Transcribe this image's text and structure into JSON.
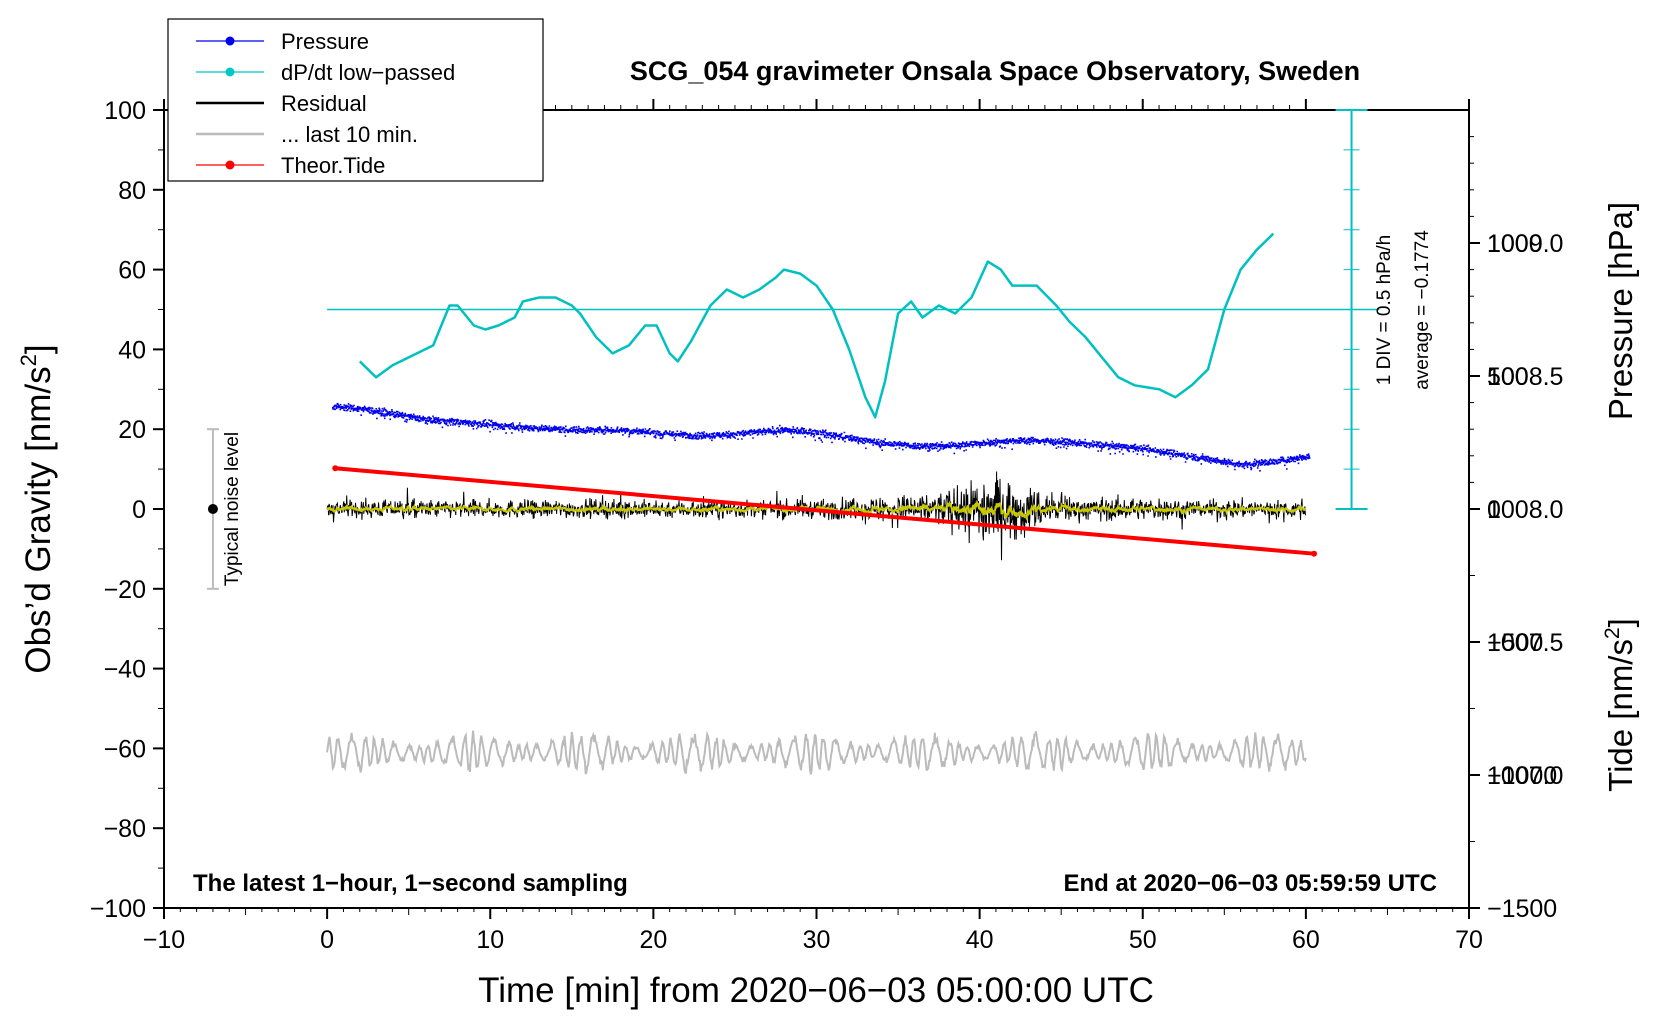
{
  "chart_data": {
    "type": "line",
    "title": "SCG_054 gravimeter Onsala Space Observatory, Sweden",
    "xlabel": "Time [min] from 2020−06−03 05:00:00 UTC",
    "ylabel_left_main": "Obs’d Gravity [nm/s",
    "ylabel_left_sup": "2",
    "ylabel_left_end": "]",
    "ylabel_right_pressure": "Pressure [hPa]",
    "ylabel_right_tide_main": "Tide [nm/s",
    "ylabel_right_tide_sup": "2",
    "ylabel_right_tide_end": "]",
    "xlim": [
      -10,
      70
    ],
    "ylim": [
      -100,
      100
    ],
    "pressure_lim": [
      1006.5,
      1009.5
    ],
    "tide_lim": [
      -1500,
      1500
    ],
    "x_ticks": [
      -10,
      0,
      10,
      20,
      30,
      40,
      50,
      60,
      70
    ],
    "x_tick_labels": [
      "−10",
      "0",
      "10",
      "20",
      "30",
      "40",
      "50",
      "60",
      "70"
    ],
    "y_ticks": [
      -100,
      -80,
      -60,
      -40,
      -20,
      0,
      20,
      40,
      60,
      80,
      100
    ],
    "y_tick_labels": [
      "−100",
      "−80",
      "−60",
      "−40",
      "−20",
      "0",
      "20",
      "40",
      "60",
      "80",
      "100"
    ],
    "pressure_ticks": [
      1007.0,
      1007.5,
      1008.0,
      1008.5,
      1009.0
    ],
    "pressure_tick_labels": [
      "1007.0",
      "1007.5",
      "1008.0",
      "1008.5",
      "1009.0"
    ],
    "tide_ticks": [
      -1500,
      -1000,
      -500,
      0,
      500,
      1000
    ],
    "tide_tick_labels": [
      "−1500",
      "−1000",
      "−500",
      "0",
      "500",
      "1000"
    ],
    "legend": [
      {
        "label": "Pressure",
        "color": "#0000ee",
        "marker": true
      },
      {
        "label": "dP/dt low−passed",
        "color": "#00c8c8",
        "marker": true
      },
      {
        "label": "Residual",
        "color": "#000000",
        "marker": false
      },
      {
        "label": "... last 10 min.",
        "color": "#bbbbbb",
        "marker": false
      },
      {
        "label": "Theor.Tide",
        "color": "#ff0000",
        "marker": true
      }
    ],
    "noise_label": "Typical noise level",
    "noise_bar": {
      "x": -7,
      "center": 0,
      "half_range": 20
    },
    "div_label_1": "1 DIV = 0.5 hPa/h",
    "div_label_2": "average = −0.1774",
    "dpdt_reference_level": 50,
    "dpdt_axis_x": 62.8,
    "annotation_left": "The latest 1−hour, 1−second sampling",
    "annotation_right": "End at 2020−06−03 05:59:59 UTC",
    "series": [
      {
        "name": "Pressure (hPa)",
        "color": "#0000ee",
        "x": [
          0,
          2,
          4,
          6,
          8,
          10,
          12,
          15,
          18,
          20,
          22,
          24,
          26,
          28,
          30,
          32,
          34,
          36,
          38,
          40,
          42,
          44,
          46,
          48,
          50,
          52,
          54,
          56,
          58,
          60
        ],
        "values": [
          1008.39,
          1008.38,
          1008.36,
          1008.34,
          1008.33,
          1008.32,
          1008.31,
          1008.3,
          1008.3,
          1008.29,
          1008.28,
          1008.28,
          1008.29,
          1008.3,
          1008.29,
          1008.27,
          1008.25,
          1008.24,
          1008.24,
          1008.25,
          1008.26,
          1008.26,
          1008.25,
          1008.24,
          1008.23,
          1008.21,
          1008.19,
          1008.17,
          1008.18,
          1008.2
        ]
      },
      {
        "name": "dP/dt low-passed",
        "color": "#00c0c0",
        "x": [
          2,
          3,
          4,
          5,
          6.5,
          7.5,
          8,
          9,
          9.7,
          10.5,
          11.5,
          12,
          13,
          14,
          15,
          15.5,
          16.5,
          17.5,
          18.5,
          19.5,
          20.2,
          21,
          21.5,
          22.3,
          23.5,
          24.5,
          25.5,
          26.5,
          27.5,
          28,
          29,
          30,
          31,
          32,
          33,
          33.6,
          34.2,
          35,
          35.8,
          36.5,
          37.5,
          38.5,
          39.5,
          40.5,
          41.3,
          42,
          43.5,
          44.7,
          45.5,
          46.5,
          47.5,
          48.5,
          49.5,
          51,
          52,
          53,
          54,
          55,
          56,
          57,
          58
        ],
        "values": [
          37,
          33,
          36,
          38,
          41,
          51,
          51,
          46,
          45,
          46,
          48,
          52,
          53,
          53,
          51,
          49,
          43,
          39,
          41,
          46,
          46,
          39,
          37,
          42,
          51,
          55,
          53,
          55,
          58,
          60,
          59,
          56,
          50,
          40,
          28,
          23,
          32,
          49,
          52,
          48,
          51,
          49,
          53,
          62,
          60,
          56,
          56,
          51,
          47,
          43,
          38,
          33,
          31,
          30,
          28,
          31,
          35,
          50,
          60,
          65,
          69
        ]
      },
      {
        "name": "Residual",
        "color": "#000000",
        "x": [
          0,
          60
        ],
        "envelope": [
          {
            "x": 0,
            "amp": 4
          },
          {
            "x": 30,
            "amp": 4
          },
          {
            "x": 35,
            "amp": 6
          },
          {
            "x": 38,
            "amp": 8
          },
          {
            "x": 40.5,
            "amp": 17
          },
          {
            "x": 43,
            "amp": 10
          },
          {
            "x": 46,
            "amp": 5
          },
          {
            "x": 60,
            "amp": 4
          }
        ]
      },
      {
        "name": "Residual smoothed",
        "color": "#c8c800",
        "x": [
          0,
          60
        ]
      },
      {
        "name": "... last 10 min.",
        "color": "#bbbbbb",
        "x": [
          0,
          60
        ],
        "center": -61,
        "amp": 4
      },
      {
        "name": "Theor.Tide (nm/s2)",
        "color": "#ff0000",
        "x": [
          0.5,
          60.5
        ],
        "values": [
          153,
          -168
        ]
      }
    ]
  }
}
